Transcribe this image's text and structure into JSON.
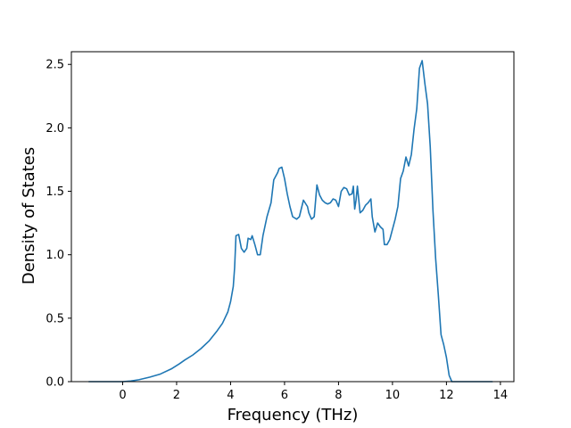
{
  "chart_data": {
    "type": "line",
    "xlabel": "Frequency (THz)",
    "ylabel": "Density of States",
    "xlim": [
      -1.9,
      14.5
    ],
    "ylim": [
      0.0,
      2.6
    ],
    "x_ticks": [
      0,
      2,
      4,
      6,
      8,
      10,
      12,
      14
    ],
    "y_ticks": [
      0.0,
      0.5,
      1.0,
      1.5,
      2.0,
      2.5
    ],
    "x_tick_labels": [
      "0",
      "2",
      "4",
      "6",
      "8",
      "10",
      "12",
      "14"
    ],
    "y_tick_labels": [
      "0.0",
      "0.5",
      "1.0",
      "1.5",
      "2.0",
      "2.5"
    ],
    "grid": false,
    "legend": "none",
    "color": "#1f77b4",
    "series": [
      {
        "x": [
          -1.25,
          -0.5,
          0.0,
          0.3,
          0.6,
          1.0,
          1.4,
          1.8,
          2.1,
          2.3,
          2.6,
          2.9,
          3.2,
          3.5,
          3.7,
          3.9,
          4.0,
          4.1,
          4.15,
          4.2,
          4.3,
          4.4,
          4.5,
          4.6,
          4.65,
          4.75,
          4.8,
          4.9,
          5.0,
          5.1,
          5.2,
          5.35,
          5.5,
          5.6,
          5.75,
          5.8,
          5.9,
          6.0,
          6.1,
          6.2,
          6.3,
          6.45,
          6.55,
          6.7,
          6.85,
          6.9,
          7.0,
          7.1,
          7.2,
          7.3,
          7.4,
          7.5,
          7.6,
          7.7,
          7.8,
          7.9,
          8.0,
          8.1,
          8.2,
          8.3,
          8.4,
          8.5,
          8.55,
          8.6,
          8.65,
          8.7,
          8.8,
          8.9,
          9.0,
          9.1,
          9.2,
          9.25,
          9.35,
          9.45,
          9.55,
          9.65,
          9.7,
          9.8,
          9.9,
          10.0,
          10.1,
          10.2,
          10.3,
          10.4,
          10.5,
          10.6,
          10.7,
          10.8,
          10.9,
          11.0,
          11.1,
          11.2,
          11.3,
          11.4,
          11.5,
          11.6,
          11.7,
          11.8,
          11.9,
          12.0,
          12.1,
          12.2,
          12.3,
          12.4,
          12.5,
          13.0,
          13.7
        ],
        "y": [
          0.0,
          0.0,
          0.0,
          0.005,
          0.015,
          0.035,
          0.06,
          0.1,
          0.14,
          0.17,
          0.21,
          0.26,
          0.32,
          0.4,
          0.46,
          0.55,
          0.63,
          0.75,
          0.9,
          1.15,
          1.16,
          1.05,
          1.02,
          1.05,
          1.13,
          1.12,
          1.15,
          1.08,
          1.0,
          1.0,
          1.15,
          1.3,
          1.41,
          1.59,
          1.65,
          1.68,
          1.69,
          1.6,
          1.48,
          1.38,
          1.3,
          1.28,
          1.3,
          1.43,
          1.38,
          1.33,
          1.28,
          1.3,
          1.55,
          1.47,
          1.43,
          1.41,
          1.4,
          1.41,
          1.44,
          1.43,
          1.38,
          1.5,
          1.53,
          1.52,
          1.47,
          1.48,
          1.54,
          1.36,
          1.43,
          1.54,
          1.33,
          1.35,
          1.39,
          1.41,
          1.44,
          1.3,
          1.18,
          1.25,
          1.22,
          1.2,
          1.08,
          1.08,
          1.12,
          1.2,
          1.28,
          1.38,
          1.6,
          1.66,
          1.77,
          1.7,
          1.79,
          1.99,
          2.15,
          2.47,
          2.53,
          2.35,
          2.19,
          1.85,
          1.35,
          0.97,
          0.68,
          0.37,
          0.29,
          0.19,
          0.05,
          0.0,
          0.0,
          0.0,
          0.0,
          0.0,
          0.0
        ]
      }
    ]
  }
}
